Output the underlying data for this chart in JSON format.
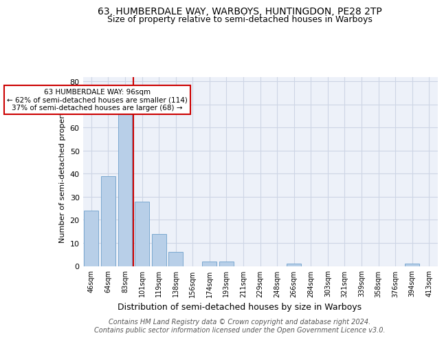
{
  "title": "63, HUMBERDALE WAY, WARBOYS, HUNTINGDON, PE28 2TP",
  "subtitle": "Size of property relative to semi-detached houses in Warboys",
  "xlabel": "Distribution of semi-detached houses by size in Warboys",
  "ylabel": "Number of semi-detached properties",
  "categories": [
    "46sqm",
    "64sqm",
    "83sqm",
    "101sqm",
    "119sqm",
    "138sqm",
    "156sqm",
    "174sqm",
    "193sqm",
    "211sqm",
    "229sqm",
    "248sqm",
    "266sqm",
    "284sqm",
    "303sqm",
    "321sqm",
    "339sqm",
    "358sqm",
    "376sqm",
    "394sqm",
    "413sqm"
  ],
  "values": [
    24,
    39,
    75,
    28,
    14,
    6,
    0,
    2,
    2,
    0,
    0,
    0,
    1,
    0,
    0,
    0,
    0,
    0,
    0,
    1,
    0
  ],
  "bar_color": "#b8cfe8",
  "bar_edge_color": "#7aa8d0",
  "bar_width": 0.85,
  "property_line_x": 2.5,
  "annotation_text": "63 HUMBERDALE WAY: 96sqm\n← 62% of semi-detached houses are smaller (114)\n37% of semi-detached houses are larger (68) →",
  "ylim": [
    0,
    82
  ],
  "yticks": [
    0,
    10,
    20,
    30,
    40,
    50,
    60,
    70,
    80
  ],
  "grid_color": "#cdd5e5",
  "bg_color": "#edf1f9",
  "footer": "Contains HM Land Registry data © Crown copyright and database right 2024.\nContains public sector information licensed under the Open Government Licence v3.0.",
  "title_fontsize": 10,
  "subtitle_fontsize": 9,
  "xlabel_fontsize": 9,
  "ylabel_fontsize": 8,
  "annotation_box_color": "#ffffff",
  "annotation_box_edge": "#cc0000",
  "red_line_color": "#cc0000"
}
